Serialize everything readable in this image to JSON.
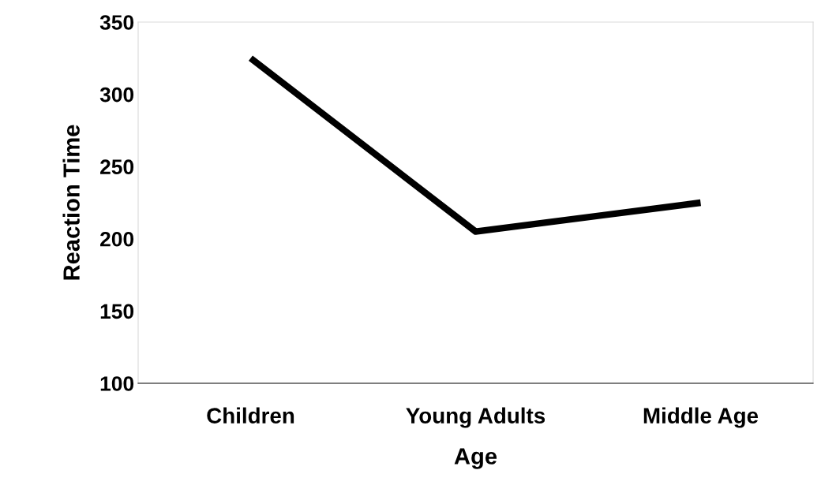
{
  "chart_data": {
    "type": "line",
    "xlabel": "Age",
    "ylabel": "Reaction Time",
    "categories": [
      "Children",
      "Young Adults",
      "Middle Age"
    ],
    "series": [
      {
        "color": "#000000",
        "values": [
          325,
          205,
          225
        ]
      }
    ],
    "ylim": [
      100,
      350
    ],
    "yticks": [
      100,
      150,
      200,
      250,
      300,
      350
    ],
    "grid": false,
    "marker": "none",
    "line_style": "solid"
  }
}
